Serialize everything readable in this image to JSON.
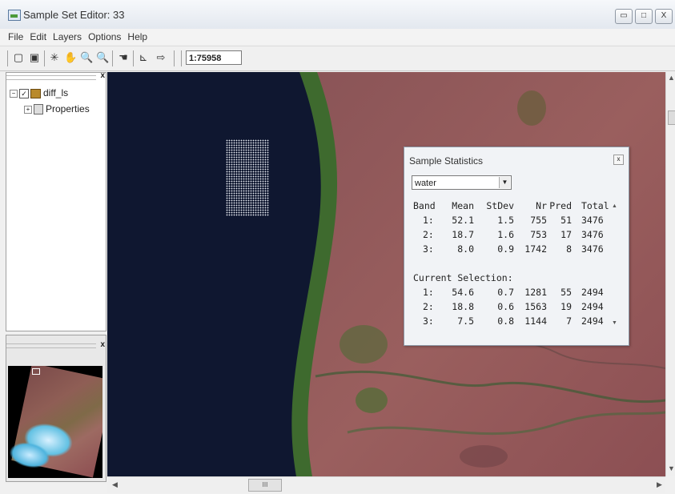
{
  "window": {
    "title": "Sample Set Editor: 33",
    "minimize_glyph": "▭",
    "maximize_glyph": "□",
    "close_glyph": "X"
  },
  "menu": [
    "File",
    "Edit",
    "Layers",
    "Options",
    "Help"
  ],
  "toolbar": {
    "icons": [
      "new-icon",
      "monitor-icon",
      "select-icon",
      "pan-hand-icon",
      "zoom-in-icon",
      "zoom-out-icon",
      "hand-icon",
      "chart-icon",
      "exit-icon"
    ],
    "scale": "1:75958"
  },
  "layers_panel": {
    "close_glyph": "x",
    "tree": [
      {
        "expander": "−",
        "checked": "✓",
        "label": "diff_ls"
      },
      {
        "expander": "+",
        "label": "Properties"
      }
    ]
  },
  "overview_panel": {
    "close_glyph": "x"
  },
  "map": {
    "hscroll_thumb": "III"
  },
  "sample_statistics": {
    "title": "Sample Statistics",
    "close_glyph": "x",
    "selected_class": "water",
    "headers": {
      "band": "Band",
      "mean": "Mean",
      "stdev": "StDev",
      "nr": "Nr",
      "pred": "Pred",
      "total": "Total"
    },
    "rows": [
      {
        "band": "1:",
        "mean": "52.1",
        "stdev": "1.5",
        "nr": "755",
        "pred": "51",
        "total": "3476"
      },
      {
        "band": "2:",
        "mean": "18.7",
        "stdev": "1.6",
        "nr": "753",
        "pred": "17",
        "total": "3476"
      },
      {
        "band": "3:",
        "mean": "8.0",
        "stdev": "0.9",
        "nr": "1742",
        "pred": "8",
        "total": "3476"
      }
    ],
    "selection_label": "Current Selection:",
    "selection_rows": [
      {
        "band": "1:",
        "mean": "54.6",
        "stdev": "0.7",
        "nr": "1281",
        "pred": "55",
        "total": "2494"
      },
      {
        "band": "2:",
        "mean": "18.8",
        "stdev": "0.6",
        "nr": "1563",
        "pred": "19",
        "total": "2494"
      },
      {
        "band": "3:",
        "mean": "7.5",
        "stdev": "0.8",
        "nr": "1144",
        "pred": "7",
        "total": "2494"
      }
    ]
  }
}
